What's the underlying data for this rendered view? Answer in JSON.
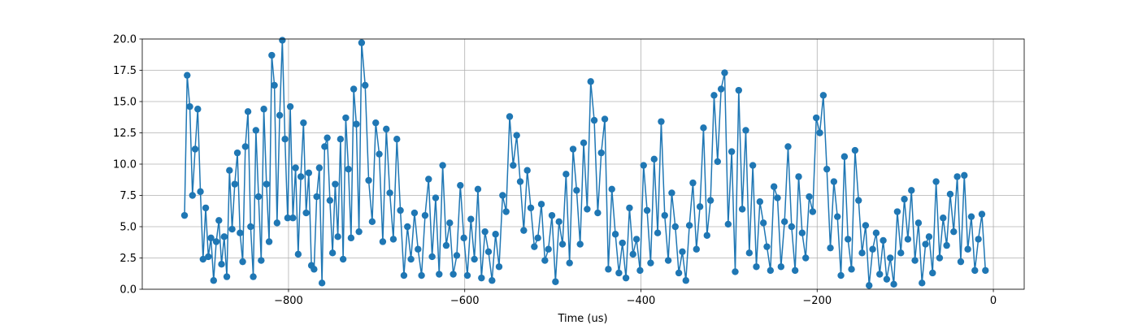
{
  "chart_data": {
    "type": "line",
    "xlabel": "Time (us)",
    "color": "#1f77b4",
    "grid": true,
    "marker": "circle",
    "xlim": [
      -966,
      35
    ],
    "xticks": [
      {
        "value": -800,
        "label": "−800"
      },
      {
        "value": -600,
        "label": "−600"
      },
      {
        "value": -400,
        "label": "−400"
      },
      {
        "value": -200,
        "label": "−200"
      },
      0
    ],
    "ylim": [
      0,
      20
    ],
    "yticks": [
      {
        "value": 0,
        "label": "0.0"
      },
      {
        "value": 2.5,
        "label": "2.5"
      },
      {
        "value": 5,
        "label": "5.0"
      },
      {
        "value": 7.5,
        "label": "7.5"
      },
      {
        "value": 10,
        "label": "10.0"
      },
      {
        "value": 12.5,
        "label": "12.5"
      },
      {
        "value": 15,
        "label": "15.0"
      },
      {
        "value": 17.5,
        "label": "17.5"
      },
      {
        "value": 20,
        "label": "20.0"
      }
    ],
    "x": [
      -918,
      -915,
      -912,
      -909,
      -906,
      -903,
      -900,
      -897,
      -894,
      -891,
      -888,
      -885,
      -882,
      -879,
      -876,
      -873,
      -870,
      -867,
      -864,
      -861,
      -858,
      -855,
      -852,
      -849,
      -846,
      -843,
      -840,
      -837,
      -834,
      -831,
      -828,
      -825,
      -822,
      -819,
      -816,
      -813,
      -810,
      -807,
      -804,
      -801,
      -798,
      -795,
      -792,
      -789,
      -786,
      -783,
      -780,
      -777,
      -774,
      -771,
      -768,
      -765,
      -762,
      -759,
      -756,
      -753,
      -750,
      -747,
      -744,
      -741,
      -738,
      -735,
      -732,
      -729,
      -726,
      -723,
      -720,
      -717,
      -713,
      -709,
      -705,
      -701,
      -697,
      -693,
      -689,
      -685,
      -681,
      -677,
      -673,
      -669,
      -665,
      -661,
      -657,
      -653,
      -649,
      -645,
      -641,
      -637,
      -633,
      -629,
      -625,
      -621,
      -617,
      -613,
      -609,
      -605,
      -601,
      -597,
      -593,
      -589,
      -585,
      -581,
      -577,
      -573,
      -569,
      -565,
      -561,
      -557,
      -553,
      -549,
      -545,
      -541,
      -537,
      -533,
      -529,
      -525,
      -521,
      -517,
      -513,
      -509,
      -505,
      -501,
      -497,
      -493,
      -489,
      -485,
      -481,
      -477,
      -473,
      -469,
      -465,
      -461,
      -457,
      -453,
      -449,
      -445,
      -441,
      -437,
      -433,
      -429,
      -425,
      -421,
      -417,
      -413,
      -409,
      -405,
      -401,
      -397,
      -393,
      -389,
      -385,
      -381,
      -377,
      -373,
      -369,
      -365,
      -361,
      -357,
      -353,
      -349,
      -345,
      -341,
      -337,
      -333,
      -329,
      -325,
      -321,
      -317,
      -313,
      -309,
      -305,
      -301,
      -297,
      -293,
      -289,
      -285,
      -281,
      -277,
      -273,
      -269,
      -265,
      -261,
      -257,
      -253,
      -249,
      -245,
      -241,
      -237,
      -233,
      -229,
      -225,
      -221,
      -217,
      -213,
      -209,
      -205,
      -201,
      -197,
      -193,
      -189,
      -185,
      -181,
      -177,
      -173,
      -169,
      -165,
      -161,
      -157,
      -153,
      -149,
      -145,
      -141,
      -137,
      -133,
      -129,
      -125,
      -121,
      -117,
      -113,
      -109,
      -105,
      -101,
      -97,
      -93,
      -89,
      -85,
      -81,
      -77,
      -73,
      -69,
      -65,
      -61,
      -57,
      -53,
      -49,
      -45,
      -41,
      -37,
      -33,
      -29,
      -25,
      -21,
      -17,
      -13,
      -9
    ],
    "values": [
      5.9,
      17.1,
      14.6,
      7.5,
      11.2,
      14.4,
      7.8,
      2.4,
      6.5,
      2.6,
      4.1,
      0.7,
      3.8,
      5.5,
      2.0,
      4.2,
      1.0,
      9.5,
      4.8,
      8.4,
      10.9,
      4.5,
      2.2,
      11.4,
      14.2,
      5.0,
      1.0,
      12.7,
      7.4,
      2.3,
      14.4,
      8.4,
      3.8,
      18.7,
      16.3,
      5.3,
      13.9,
      19.9,
      12.0,
      5.7,
      14.6,
      5.7,
      9.7,
      2.8,
      9.0,
      13.3,
      6.1,
      9.3,
      1.9,
      1.6,
      7.4,
      9.7,
      0.5,
      11.4,
      12.1,
      7.1,
      2.9,
      8.4,
      4.2,
      12.0,
      2.4,
      13.7,
      9.6,
      4.1,
      16.0,
      13.2,
      4.6,
      19.7,
      16.3,
      8.7,
      5.4,
      13.3,
      10.8,
      3.8,
      12.8,
      7.7,
      4.0,
      12.0,
      6.3,
      1.1,
      5.0,
      2.4,
      6.1,
      3.2,
      1.1,
      5.9,
      8.8,
      2.6,
      7.3,
      1.2,
      9.9,
      3.5,
      5.3,
      1.2,
      2.7,
      8.3,
      4.1,
      1.1,
      5.6,
      2.4,
      8.0,
      0.9,
      4.6,
      3.0,
      0.7,
      4.4,
      1.8,
      7.5,
      6.2,
      13.8,
      9.9,
      12.3,
      8.6,
      4.7,
      9.5,
      6.5,
      3.4,
      4.1,
      6.8,
      2.3,
      3.2,
      5.9,
      0.6,
      5.4,
      3.6,
      9.2,
      2.1,
      11.2,
      7.9,
      3.6,
      11.7,
      6.4,
      16.6,
      13.5,
      6.1,
      10.9,
      13.6,
      1.6,
      8.0,
      4.4,
      1.3,
      3.7,
      0.9,
      6.5,
      2.8,
      4.0,
      1.5,
      9.9,
      6.3,
      2.1,
      10.4,
      4.5,
      13.4,
      5.9,
      2.3,
      7.7,
      5.0,
      1.3,
      3.0,
      0.7,
      5.1,
      8.5,
      3.2,
      6.6,
      12.9,
      4.3,
      7.1,
      15.5,
      10.2,
      16.0,
      17.3,
      5.2,
      11.0,
      1.4,
      15.9,
      6.4,
      12.7,
      2.9,
      9.9,
      1.8,
      7.0,
      5.3,
      3.4,
      1.5,
      8.2,
      7.3,
      1.8,
      5.4,
      11.4,
      5.0,
      1.5,
      9.0,
      4.5,
      2.5,
      7.4,
      6.2,
      13.7,
      12.5,
      15.5,
      9.6,
      3.3,
      8.6,
      5.8,
      1.1,
      10.6,
      4.0,
      1.6,
      11.1,
      7.1,
      2.9,
      5.1,
      0.3,
      3.2,
      4.5,
      1.2,
      3.9,
      0.8,
      2.5,
      0.4,
      6.2,
      2.9,
      7.2,
      4.0,
      7.9,
      2.3,
      5.3,
      0.5,
      3.6,
      4.2,
      1.3,
      8.6,
      2.5,
      5.7,
      3.5,
      7.6,
      4.6,
      9.0,
      2.2,
      9.1,
      3.2,
      5.8,
      1.5,
      4.0,
      6.0,
      1.5
    ]
  }
}
